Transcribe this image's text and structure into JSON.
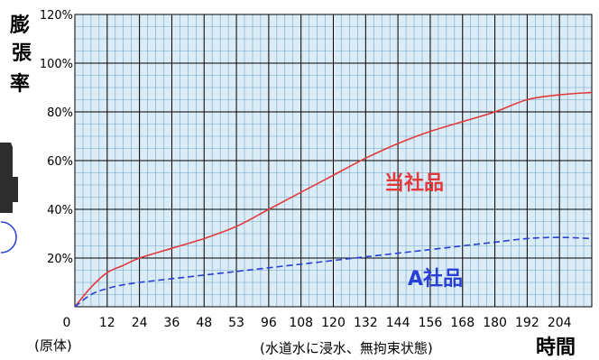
{
  "chart_data": {
    "type": "line",
    "ylabel": [
      "膨",
      "張",
      "率"
    ],
    "xlabel": "時間",
    "x_note": "(原体)",
    "condition_note": "(水道水に浸水、無拘束状態)",
    "x_tick_labels": [
      "0",
      "12",
      "24",
      "36",
      "48",
      "53",
      "96",
      "108",
      "120",
      "132",
      "144",
      "156",
      "168",
      "180",
      "192",
      "204"
    ],
    "y_tick_labels": [
      "20%",
      "40%",
      "60%",
      "80%",
      "100%",
      "120%"
    ],
    "ylim": [
      0,
      120
    ],
    "xlim": [
      0,
      16
    ],
    "grid": "major-and-minor",
    "x": [
      0,
      0.5,
      1,
      1.5,
      2,
      3,
      4,
      5,
      6,
      7,
      8,
      9,
      10,
      11,
      12,
      13,
      14,
      15,
      16
    ],
    "series": [
      {
        "name": "当社品",
        "color": "#e23a3a",
        "style": "solid",
        "values": [
          0,
          8,
          14,
          17,
          20,
          24,
          28,
          33,
          40,
          47,
          54,
          61,
          67,
          72,
          76,
          80,
          85,
          87,
          88
        ]
      },
      {
        "name": "A社品",
        "color": "#2a3fd6",
        "style": "dashed",
        "values": [
          0,
          5,
          7.5,
          9,
          10,
          11.5,
          13,
          14.5,
          16,
          17.5,
          19,
          20.5,
          22,
          23.5,
          25,
          26.5,
          28,
          28.5,
          28
        ]
      }
    ]
  },
  "colors": {
    "plot_background": "#dcecf7",
    "major_grid": "#000000",
    "minor_grid": "#6fa3c8"
  }
}
